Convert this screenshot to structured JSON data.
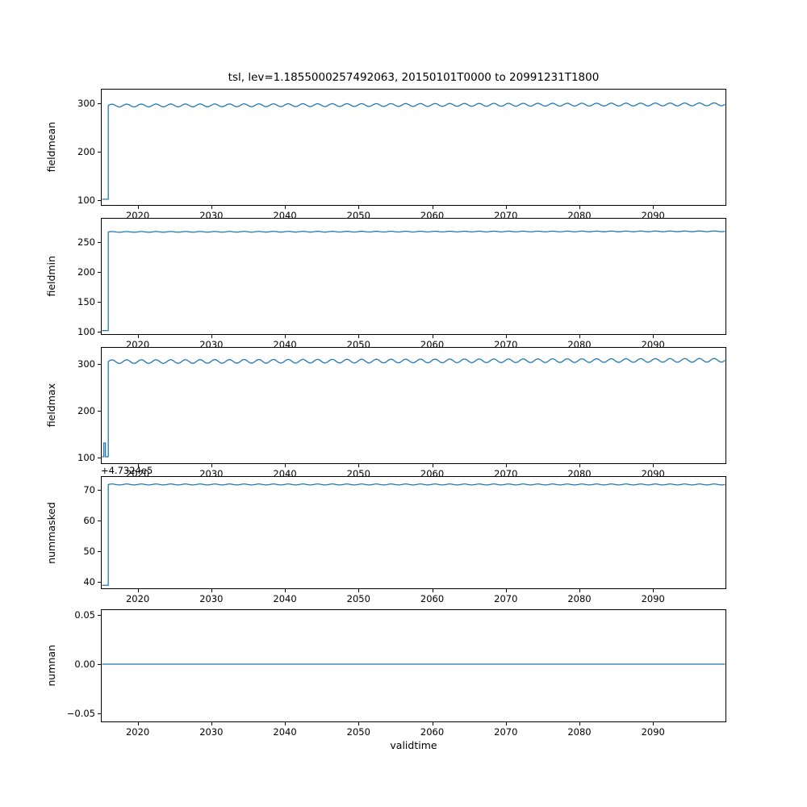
{
  "figure": {
    "title": "tsl, lev=1.1855000257492063, 20150101T0000 to 20991231T1800",
    "xlabel": "validtime",
    "line_color": "#1f77b4",
    "x_range": [
      2015.0,
      2099.95
    ],
    "x_ticks": [
      2020,
      2030,
      2040,
      2050,
      2060,
      2070,
      2080,
      2090
    ],
    "x_tick_labels": [
      "2020",
      "2030",
      "2040",
      "2050",
      "2060",
      "2070",
      "2080",
      "2090"
    ]
  },
  "chart_data": [
    {
      "type": "line",
      "name": "fieldmean",
      "ylabel": "fieldmean",
      "ylim": [
        88,
        330
      ],
      "y_ticks": [
        100,
        200,
        300
      ],
      "y_tick_labels": [
        "100",
        "200",
        "300"
      ],
      "series": {
        "description": "starts at ~100 in 2015, steps up to ~295 in 2016, small seasonal oscillation around 295-302 with slight upward trend to 2099",
        "segments": [
          {
            "x0": 2015.05,
            "x1": 2015.9,
            "y": 100
          },
          {
            "type": "osc",
            "x0": 2015.9,
            "x1": 2099.9,
            "base": 296.5,
            "amp": 3.0,
            "period": 2.0,
            "slope": 2.5
          }
        ]
      }
    },
    {
      "type": "line",
      "name": "fieldmin",
      "ylabel": "fieldmin",
      "ylim": [
        94,
        290.5
      ],
      "y_ticks": [
        100,
        150,
        200,
        250
      ],
      "y_tick_labels": [
        "100",
        "150",
        "200",
        "250"
      ],
      "series": {
        "description": "starts at ~100 in 2015, steps up to ~268 in 2016, then essentially flat to 2099",
        "segments": [
          {
            "x0": 2015.05,
            "x1": 2015.9,
            "y": 100
          },
          {
            "type": "osc",
            "x0": 2015.9,
            "x1": 2099.9,
            "base": 268,
            "amp": 0.6,
            "period": 2.0,
            "slope": 1.0
          }
        ]
      }
    },
    {
      "type": "line",
      "name": "fieldmax",
      "ylabel": "fieldmax",
      "ylim": [
        86,
        336
      ],
      "y_ticks": [
        100,
        200,
        300
      ],
      "y_tick_labels": [
        "100",
        "200",
        "300"
      ],
      "series": {
        "description": "starts at ~100 in 2015 with a brief spike to ~130, steps up to ~305 in 2016, small oscillation around 303-312 to 2099",
        "segments": [
          {
            "x0": 2015.05,
            "x1": 2015.3,
            "y": 100
          },
          {
            "x0": 2015.3,
            "x1": 2015.5,
            "y": 130
          },
          {
            "x0": 2015.5,
            "x1": 2015.9,
            "y": 100
          },
          {
            "type": "osc",
            "x0": 2015.9,
            "x1": 2099.9,
            "base": 306,
            "amp": 4.0,
            "period": 2.0,
            "slope": 3.0
          }
        ]
      }
    },
    {
      "type": "line",
      "name": "nummasked",
      "ylabel": "nummasked",
      "offset_text": "+4.7324e5",
      "ylim": [
        37.5,
        74.5
      ],
      "y_ticks": [
        40,
        50,
        60,
        70
      ],
      "y_tick_labels": [
        "40",
        "50",
        "60",
        "70"
      ],
      "series": {
        "description": "values offset by +4.7324e5; starts at ~38.5 in 2015, steps up to ~72 in 2016, flat to 2099",
        "segments": [
          {
            "x0": 2015.05,
            "x1": 2015.9,
            "y": 38.5
          },
          {
            "type": "osc",
            "x0": 2015.9,
            "x1": 2099.9,
            "base": 72,
            "amp": 0.15,
            "period": 2.0,
            "slope": 0
          }
        ]
      }
    },
    {
      "type": "line",
      "name": "numnan",
      "ylabel": "numnan",
      "ylim": [
        -0.059,
        0.0557
      ],
      "y_ticks": [
        -0.05,
        0,
        0.05
      ],
      "y_tick_labels": [
        "−0.05",
        "0.00",
        "0.05"
      ],
      "series": {
        "description": "constant 0.00 across full time range",
        "segments": [
          {
            "x0": 2015.05,
            "x1": 2099.9,
            "y": 0
          }
        ]
      }
    }
  ]
}
